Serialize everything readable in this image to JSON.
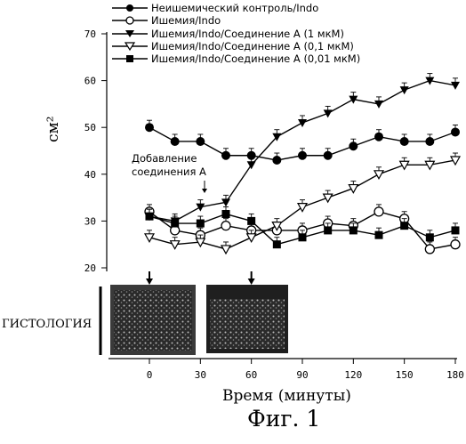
{
  "chart_data": {
    "type": "line",
    "title": "",
    "ylabel": "см²",
    "xlabel": "Время (минуты)",
    "ylim": [
      20,
      70
    ],
    "xlim": [
      0,
      180
    ],
    "yticks": [
      20,
      30,
      40,
      50,
      60,
      70
    ],
    "xticks": [
      0,
      30,
      60,
      90,
      120,
      150,
      180
    ],
    "legend_position": "top",
    "series": [
      {
        "name": "Неишемический контроль/Indo",
        "marker": "filled-circle",
        "x": [
          0,
          15,
          30,
          45,
          60,
          75,
          90,
          105,
          120,
          135,
          150,
          165,
          180
        ],
        "values": [
          50,
          47,
          47,
          44,
          44,
          43,
          44,
          44,
          46,
          48,
          47,
          47,
          49
        ]
      },
      {
        "name": "Ишемия/Indo",
        "marker": "open-circle",
        "x": [
          0,
          15,
          30,
          45,
          60,
          75,
          90,
          105,
          120,
          135,
          150,
          165,
          180
        ],
        "values": [
          32,
          28,
          27,
          29,
          28,
          28,
          28,
          29.5,
          29,
          32,
          30.5,
          24,
          25
        ]
      },
      {
        "name": "Ишемия/Indo/Соединение А (1 мкМ)",
        "marker": "filled-triangle-down",
        "x": [
          0,
          15,
          30,
          45,
          60,
          75,
          90,
          105,
          120,
          135,
          150,
          165,
          180
        ],
        "values": [
          31,
          30,
          33,
          34,
          42,
          48,
          51,
          53,
          56,
          55,
          58,
          60,
          59
        ]
      },
      {
        "name": "Ишемия/Indo/Соединение А (0,1 мкМ)",
        "marker": "open-triangle-down",
        "x": [
          0,
          15,
          30,
          45,
          60,
          75,
          90,
          105,
          120,
          135,
          150,
          165,
          180
        ],
        "values": [
          26.5,
          25,
          25.5,
          24,
          26.5,
          29,
          33,
          35,
          37,
          40,
          42,
          42,
          43
        ]
      },
      {
        "name": "Ишемия/Indo/Соединение А (0,01 мкМ)",
        "marker": "filled-square",
        "x": [
          0,
          15,
          30,
          45,
          60,
          75,
          90,
          105,
          120,
          135,
          150,
          165,
          180
        ],
        "values": [
          31,
          29.5,
          29.5,
          31.5,
          30,
          25,
          26.5,
          28,
          28,
          27,
          29,
          26.5,
          28
        ]
      }
    ]
  },
  "annotation": {
    "line1": "Добавление",
    "line2": "соединения А"
  },
  "histology_label": "ГИСТОЛОГИЯ",
  "figure_caption": "Фиг. 1",
  "histology_arrows_at_x": [
    0,
    60
  ]
}
